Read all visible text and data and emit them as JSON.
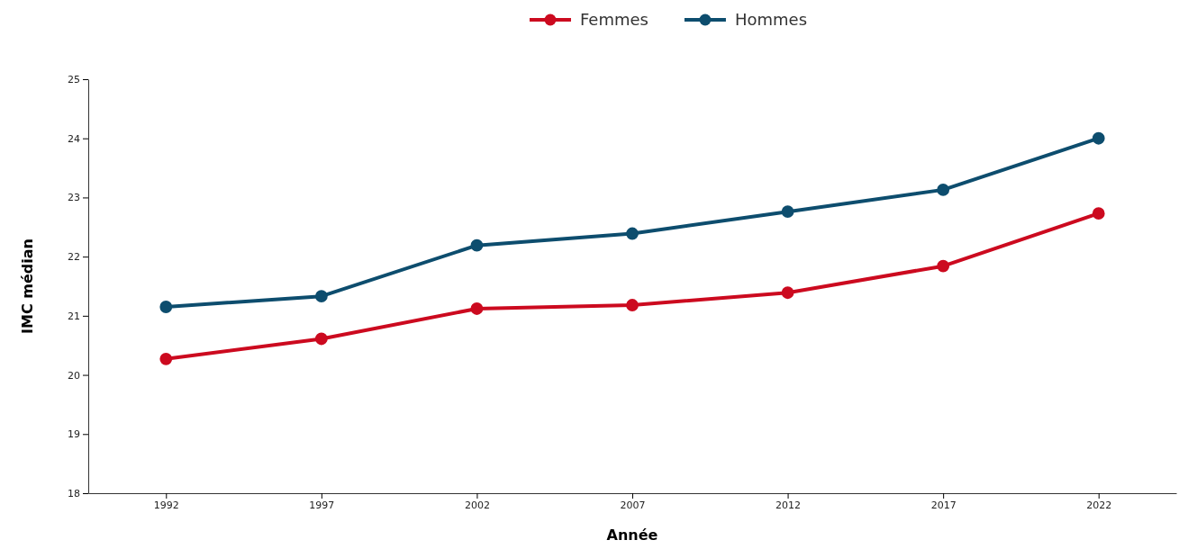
{
  "chart_data": {
    "type": "line",
    "xlabel": "Année",
    "ylabel": "IMC médian",
    "categories": [
      "1992",
      "1997",
      "2002",
      "2007",
      "2012",
      "2017",
      "2022"
    ],
    "series": [
      {
        "name": "Femmes",
        "color": "#cc0a1f",
        "values": [
          20.27,
          20.61,
          21.12,
          21.18,
          21.39,
          21.84,
          22.73
        ]
      },
      {
        "name": "Hommes",
        "color": "#0d4d6e",
        "values": [
          21.15,
          21.33,
          22.19,
          22.39,
          22.76,
          23.13,
          24.0
        ]
      }
    ],
    "ylim": [
      18,
      25
    ],
    "yticks": [
      18,
      19,
      20,
      21,
      22,
      23,
      24,
      25
    ],
    "grid": false,
    "legend": "top",
    "marker": "circle",
    "line_style": "solid"
  }
}
